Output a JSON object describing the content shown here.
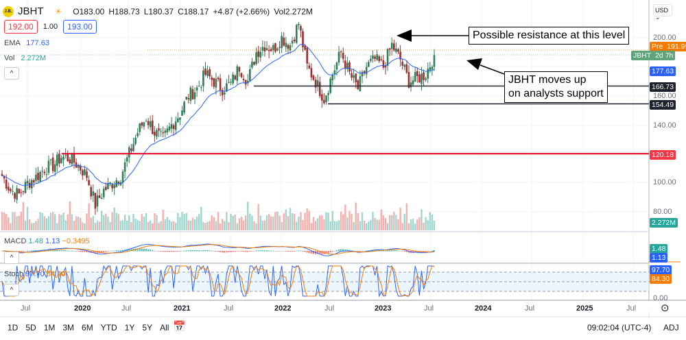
{
  "header": {
    "logo_text": "J.B.",
    "symbol": "JBHT",
    "open": "O183.00",
    "high": "H188.73",
    "low": "L180.37",
    "close": "C188.17",
    "change": "+4.87 (+2.66%)",
    "volume": "Vol2.272M",
    "bid": "192.00",
    "spread": "1.00",
    "ask": "193.00",
    "ema_label": "EMA",
    "ema_value": "177.63",
    "vol_label": "Vol",
    "vol_value": "2.272M",
    "currency": "USD"
  },
  "indicators": {
    "macd_label": "MACD",
    "macd_v1": "1.48",
    "macd_v2": "1.13",
    "macd_v3": "−0.3495",
    "stoch_label": "Stoch",
    "stoch_k": "97.70",
    "stoch_d": "84.30"
  },
  "price_axis": [
    "200.00",
    "160.00",
    "140.00",
    "100.00",
    "80.00",
    "0.00"
  ],
  "badges": {
    "pre_label": "Pre",
    "pre": "191.99",
    "sym": "JBHT",
    "sym_time": "2d 7h",
    "ema": "177.63",
    "res1": "166.73",
    "res2": "154.49",
    "support": "120.18",
    "vol": "2.272M",
    "macd": "1.48",
    "signal": "1.13",
    "k": "97.70",
    "d": "84.30"
  },
  "time_axis": [
    "Jul",
    "2020",
    "Jul",
    "2021",
    "Jul",
    "2022",
    "Jul",
    "2023",
    "Jul",
    "2024",
    "Jul",
    "2025",
    "Jul"
  ],
  "annotations": {
    "resistance": "Possible resistance at this level",
    "support_line1": "JBHT moves up",
    "support_line2": "on analysts support"
  },
  "toolbar": {
    "ranges": [
      "1D",
      "5D",
      "1M",
      "3M",
      "6M",
      "YTD",
      "1Y",
      "5Y",
      "All"
    ],
    "time": "09:02:04 (UTC-4)",
    "adj": "ADJ"
  },
  "colors": {
    "up": "#26a69a",
    "down": "#ef5350",
    "ema": "#2962ff",
    "support": "#f23645",
    "orange": "#f57c00"
  },
  "chart_data": {
    "type": "candlestick",
    "title": "JBHT",
    "start": "2019-04",
    "monthly_close": [
      105,
      95,
      92,
      100,
      104,
      110,
      112,
      118,
      117,
      112,
      105,
      85,
      95,
      100,
      105,
      120,
      135,
      145,
      135,
      130,
      140,
      148,
      160,
      165,
      175,
      170,
      165,
      168,
      180,
      170,
      190,
      195,
      192,
      200,
      195,
      210,
      180,
      170,
      158,
      175,
      190,
      175,
      165,
      180,
      185,
      180,
      195,
      185,
      170,
      172,
      175,
      188
    ],
    "ylim": [
      0,
      210
    ],
    "hlines": [
      {
        "value": 120.18,
        "color": "red"
      },
      {
        "value": 166.73,
        "color": "black"
      },
      {
        "value": 154.49,
        "color": "black"
      }
    ]
  }
}
